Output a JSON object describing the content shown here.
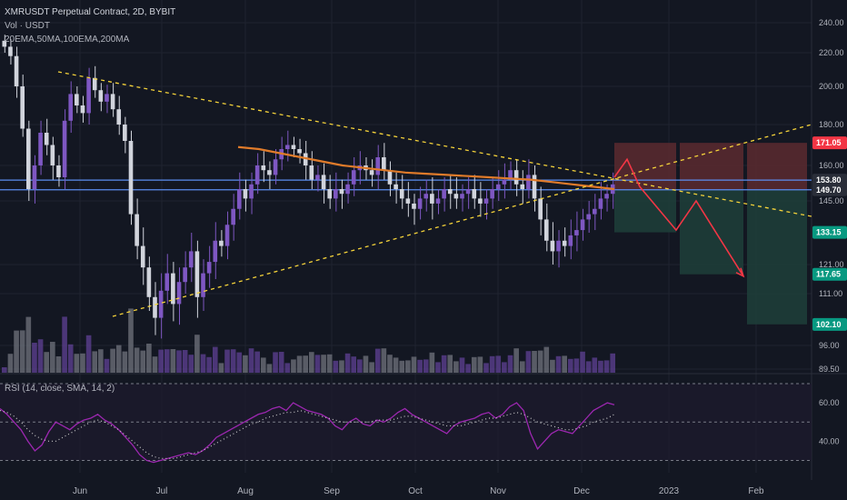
{
  "header": {
    "symbol_line": "XMRUSDT Perpetual Contract, 2D, BYBIT",
    "vol_line": "Vol · USDT",
    "ma_line": "20EMA,50MA,100EMA,200MA"
  },
  "rsi": {
    "label": "RSI (14, close, SMA, 14, 2)",
    "ticks": [
      "60.00",
      "40.00"
    ],
    "colors": {
      "rsi": "#9c27b0",
      "sma": "#c8c8c8",
      "band": "#787b86"
    }
  },
  "colors": {
    "background": "#131722",
    "up": "#7e57c2",
    "down": "#d1d4dc",
    "ma200": "#e07b2a",
    "trendline": "#f5d33a",
    "hline": "#5b8def",
    "projection": "#f23645",
    "stop_zone": "#5c2a2f",
    "target_zone": "#1e3f3a"
  },
  "chart_data": {
    "type": "candlestick",
    "price_axis_ticks": [
      "240.00",
      "220.00",
      "200.00",
      "180.00",
      "160.00",
      "145.00",
      "121.00",
      "111.00",
      "96.00",
      "89.50"
    ],
    "time_axis_ticks": [
      "Jun",
      "Jul",
      "Aug",
      "Sep",
      "Oct",
      "Nov",
      "Dec",
      "2023",
      "Feb"
    ],
    "price_labels": [
      {
        "value": "171.05",
        "color": "#f23645"
      },
      {
        "value": "153.80",
        "color": "#2a2e39"
      },
      {
        "value": "149.70",
        "color": "#2a2e39"
      },
      {
        "value": "133.15",
        "color": "#089981"
      },
      {
        "value": "117.65",
        "color": "#089981"
      },
      {
        "value": "102.10",
        "color": "#089981"
      }
    ],
    "horizontal_levels": [
      153.8,
      149.7
    ],
    "ma200_values": [
      169,
      168,
      166,
      164,
      162,
      160,
      159,
      158,
      157,
      156.5,
      156,
      155.5,
      155,
      154.5,
      154,
      153,
      152,
      151,
      150
    ],
    "closes": [
      224,
      218,
      200,
      178,
      150,
      160,
      176,
      170,
      160,
      155,
      182,
      196,
      190,
      186,
      205,
      198,
      192,
      196,
      188,
      180,
      172,
      140,
      128,
      120,
      110,
      104,
      112,
      118,
      108,
      115,
      120,
      126,
      110,
      118,
      122,
      130,
      128,
      136,
      142,
      150,
      146,
      152,
      160,
      158,
      156,
      163,
      168,
      170,
      168,
      166,
      160,
      154,
      156,
      150,
      146,
      150,
      148,
      152,
      158,
      160,
      158,
      156,
      164,
      158,
      152,
      150,
      146,
      144,
      142,
      146,
      148,
      144,
      146,
      150,
      148,
      146,
      148,
      150,
      146,
      144,
      146,
      150,
      152,
      154,
      158,
      152,
      150,
      156,
      146,
      138,
      130,
      126,
      130,
      128,
      132,
      134,
      138,
      140,
      142,
      146,
      148,
      152
    ],
    "trade_setups": [
      {
        "entry": 149.7,
        "stop": 171.05,
        "target": 133.15
      },
      {
        "entry": 149.7,
        "stop": 171.05,
        "target": 117.65
      },
      {
        "entry": 149.7,
        "stop": 171.05,
        "target": 102.1
      }
    ],
    "projection_path": [
      155,
      163,
      151,
      134,
      145,
      117
    ],
    "rsi_values": [
      57,
      54,
      50,
      46,
      40,
      35,
      38,
      45,
      50,
      48,
      46,
      49,
      51,
      52,
      54,
      51,
      49,
      46,
      42,
      38,
      33,
      30,
      29,
      30,
      31,
      32,
      33,
      34,
      33,
      35,
      38,
      42,
      44,
      46,
      48,
      50,
      52,
      54,
      55,
      57,
      58,
      56,
      60,
      58,
      56,
      55,
      54,
      52,
      48,
      46,
      50,
      52,
      49,
      48,
      51,
      50,
      52,
      55,
      57,
      54,
      52,
      50,
      48,
      46,
      44,
      48,
      50,
      51,
      52,
      54,
      55,
      52,
      54,
      58,
      60,
      56,
      44,
      36,
      40,
      44,
      46,
      45,
      44,
      48,
      52,
      56,
      58,
      60,
      59
    ],
    "rsi_sma_values": [
      56,
      55,
      53,
      50,
      46,
      43,
      41,
      40,
      40,
      42,
      44,
      46,
      48,
      50,
      51,
      50,
      48,
      46,
      43,
      40,
      37,
      34,
      32,
      31,
      31,
      31,
      32,
      33,
      34,
      35,
      37,
      39,
      41,
      43,
      45,
      47,
      49,
      50,
      52,
      53,
      54,
      55,
      55,
      56,
      55,
      54,
      53,
      52,
      51,
      50,
      50,
      50,
      50,
      50,
      51,
      51,
      51,
      52,
      53,
      53,
      52,
      51,
      50,
      49,
      48,
      48,
      48,
      49,
      50,
      51,
      52,
      52,
      53,
      54,
      55,
      54,
      52,
      50,
      49,
      48,
      47,
      46,
      46,
      47,
      48,
      50,
      51,
      52,
      54
    ],
    "rsi_range": [
      25,
      70
    ]
  }
}
